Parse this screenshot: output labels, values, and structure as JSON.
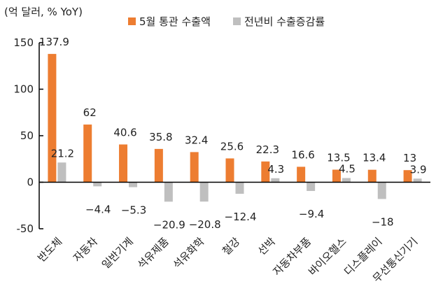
{
  "chart_data": {
    "type": "bar",
    "unit_label": "(억 달러, % YoY)",
    "title": "",
    "xlabel": "",
    "ylabel": "",
    "ylim": [
      -50,
      150
    ],
    "yticks": [
      -50,
      0,
      50,
      100,
      150
    ],
    "grid": false,
    "legend_position": "top",
    "categories": [
      "반도체",
      "자동차",
      "일반기계",
      "석유제품",
      "석유화학",
      "철강",
      "선박",
      "자동차부품",
      "바이오헬스",
      "디스플레이",
      "무선통신기기"
    ],
    "series": [
      {
        "name": "5월 통관 수출액",
        "color": "#ED7D31",
        "values": [
          137.9,
          62,
          40.6,
          35.8,
          32.4,
          25.6,
          22.3,
          16.6,
          13.5,
          13.4,
          13
        ],
        "labels": [
          "137.9",
          "62",
          "40.6",
          "35.8",
          "32.4",
          "25.6",
          "22.3",
          "16.6",
          "13.5",
          "13.4",
          "13"
        ]
      },
      {
        "name": "전년비 수출증감률",
        "color": "#BFBFBF",
        "values": [
          21.2,
          -4.4,
          -5.3,
          -20.9,
          -20.8,
          -12.4,
          4.3,
          -9.4,
          4.5,
          -18,
          3.9
        ],
        "labels": [
          "21.2",
          "-4.4",
          "-5.3",
          "-20.9",
          "-20.8",
          "-12.4",
          "4.3",
          "-9.4",
          "4.5",
          "-18",
          "3.9"
        ]
      }
    ]
  }
}
